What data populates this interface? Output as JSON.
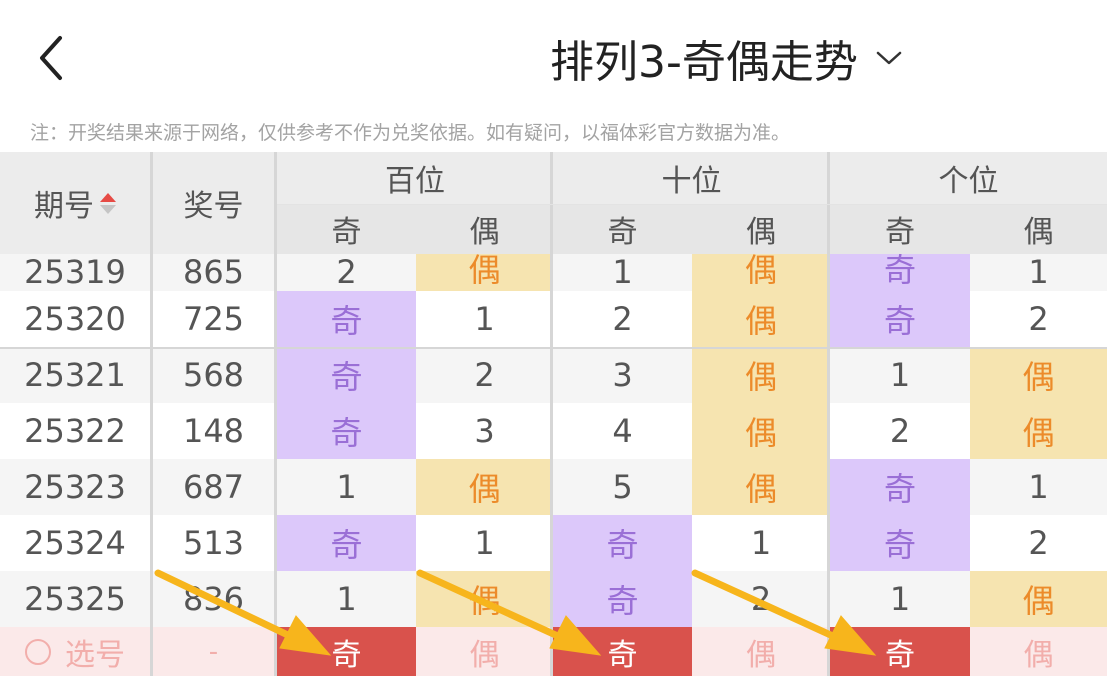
{
  "header": {
    "back_icon": "chevron-left-icon",
    "title": "排列3-奇偶走势",
    "dropdown_icon": "chevron-down-icon"
  },
  "notice": "注：开奖结果来源于网络，仅供参考不作为兑奖依据。如有疑问，以福体彩官方数据为准。",
  "table": {
    "headers": {
      "period": "期号",
      "number": "奖号",
      "groups": [
        "百位",
        "十位",
        "个位"
      ],
      "sub": [
        "奇",
        "偶"
      ]
    },
    "rows": [
      {
        "period": "25319",
        "number": "865",
        "cells": [
          "2",
          "偶",
          "1",
          "偶",
          "奇",
          "1"
        ]
      },
      {
        "period": "25320",
        "number": "725",
        "cells": [
          "奇",
          "1",
          "2",
          "偶",
          "奇",
          "2"
        ]
      },
      {
        "period": "25321",
        "number": "568",
        "cells": [
          "奇",
          "2",
          "3",
          "偶",
          "1",
          "偶"
        ]
      },
      {
        "period": "25322",
        "number": "148",
        "cells": [
          "奇",
          "3",
          "4",
          "偶",
          "2",
          "偶"
        ]
      },
      {
        "period": "25323",
        "number": "687",
        "cells": [
          "1",
          "偶",
          "5",
          "偶",
          "奇",
          "1"
        ]
      },
      {
        "period": "25324",
        "number": "513",
        "cells": [
          "奇",
          "1",
          "奇",
          "1",
          "奇",
          "2"
        ]
      },
      {
        "period": "25325",
        "number": "836",
        "cells": [
          "1",
          "偶",
          "奇",
          "2",
          "1",
          "偶"
        ]
      }
    ],
    "select_row": {
      "radio_icon": "radio-empty-icon",
      "label": "选号",
      "number": "-",
      "options": [
        {
          "label": "奇",
          "selected": true
        },
        {
          "label": "偶",
          "selected": false
        },
        {
          "label": "奇",
          "selected": true
        },
        {
          "label": "偶",
          "selected": false
        },
        {
          "label": "奇",
          "selected": true
        },
        {
          "label": "偶",
          "selected": false
        }
      ]
    }
  },
  "colors": {
    "odd_bg": "#dcc8fa",
    "odd_text": "#9a6fd6",
    "even_bg": "#f6e4b0",
    "even_text": "#ec8b2a",
    "selected_bg": "#d9524c",
    "select_row_bg": "#fbe9e9",
    "arrow": "#f7b51c"
  }
}
